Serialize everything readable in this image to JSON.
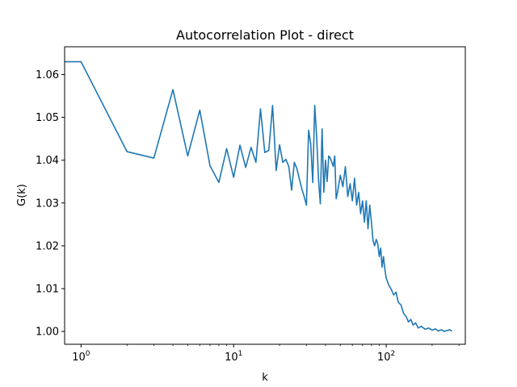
{
  "chart_data": {
    "type": "line",
    "title": "Autocorrelation Plot - direct",
    "xlabel": "k",
    "ylabel": "G(k)",
    "xscale": "log",
    "xlim": [
      0.78,
      330
    ],
    "ylim": [
      0.997,
      1.0665
    ],
    "grid": false,
    "line_color": "#1f77b4",
    "x_ticks": [
      {
        "value": 1,
        "base": "10",
        "exp": "0"
      },
      {
        "value": 10,
        "base": "10",
        "exp": "1"
      },
      {
        "value": 100,
        "base": "10",
        "exp": "2"
      }
    ],
    "y_ticks": [
      1.0,
      1.01,
      1.02,
      1.03,
      1.04,
      1.05,
      1.06
    ],
    "y_tick_labels": [
      "1.00",
      "1.01",
      "1.02",
      "1.03",
      "1.04",
      "1.05",
      "1.06"
    ],
    "series": [
      {
        "points": [
          [
            0.5,
            1.063
          ],
          [
            1,
            1.063
          ],
          [
            2,
            1.042
          ],
          [
            3,
            1.0405
          ],
          [
            4,
            1.0565
          ],
          [
            5,
            1.041
          ],
          [
            6,
            1.0517
          ],
          [
            7,
            1.0387
          ],
          [
            8,
            1.0348
          ],
          [
            9,
            1.0427
          ],
          [
            10,
            1.036
          ],
          [
            11,
            1.0435
          ],
          [
            12,
            1.0383
          ],
          [
            13,
            1.043
          ],
          [
            14,
            1.0395
          ],
          [
            15,
            1.052
          ],
          [
            16,
            1.0418
          ],
          [
            17,
            1.0423
          ],
          [
            18,
            1.0528
          ],
          [
            19,
            1.0376
          ],
          [
            20,
            1.0436
          ],
          [
            21,
            1.0395
          ],
          [
            22,
            1.0402
          ],
          [
            23,
            1.0385
          ],
          [
            24,
            1.033
          ],
          [
            25,
            1.0395
          ],
          [
            26,
            1.038
          ],
          [
            27,
            1.0355
          ],
          [
            28,
            1.0333
          ],
          [
            29,
            1.0315
          ],
          [
            30,
            1.0295
          ],
          [
            31,
            1.047
          ],
          [
            32,
            1.0438
          ],
          [
            33,
            1.0348
          ],
          [
            34,
            1.0528
          ],
          [
            35,
            1.0455
          ],
          [
            36,
            1.0355
          ],
          [
            37,
            1.0298
          ],
          [
            38,
            1.0473
          ],
          [
            39,
            1.0325
          ],
          [
            40,
            1.04
          ],
          [
            41,
            1.035
          ],
          [
            42,
            1.041
          ],
          [
            43,
            1.0405
          ],
          [
            44,
            1.0395
          ],
          [
            45,
            1.0385
          ],
          [
            46,
            1.041
          ],
          [
            47,
            1.031
          ],
          [
            48,
            1.0325
          ],
          [
            50,
            1.0365
          ],
          [
            52,
            1.0338
          ],
          [
            54,
            1.0385
          ],
          [
            56,
            1.0315
          ],
          [
            58,
            1.0345
          ],
          [
            60,
            1.0305
          ],
          [
            62,
            1.0358
          ],
          [
            64,
            1.0295
          ],
          [
            66,
            1.0325
          ],
          [
            68,
            1.0275
          ],
          [
            70,
            1.0305
          ],
          [
            72,
            1.0255
          ],
          [
            74,
            1.0305
          ],
          [
            76,
            1.024
          ],
          [
            78,
            1.0295
          ],
          [
            80,
            1.0255
          ],
          [
            82,
            1.0212
          ],
          [
            84,
            1.02
          ],
          [
            86,
            1.0215
          ],
          [
            88,
            1.0205
          ],
          [
            90,
            1.0175
          ],
          [
            92,
            1.0195
          ],
          [
            94,
            1.015
          ],
          [
            96,
            1.0175
          ],
          [
            98,
            1.0145
          ],
          [
            100,
            1.0125
          ],
          [
            104,
            1.0108
          ],
          [
            108,
            1.0098
          ],
          [
            112,
            1.0085
          ],
          [
            116,
            1.0092
          ],
          [
            120,
            1.0068
          ],
          [
            125,
            1.0062
          ],
          [
            130,
            1.0042
          ],
          [
            135,
            1.0035
          ],
          [
            140,
            1.0022
          ],
          [
            145,
            1.0028
          ],
          [
            150,
            1.0015
          ],
          [
            156,
            1.002
          ],
          [
            162,
            1.0008
          ],
          [
            170,
            1.0012
          ],
          [
            180,
            1.0005
          ],
          [
            190,
            1.0008
          ],
          [
            200,
            1.0003
          ],
          [
            210,
            1.0006
          ],
          [
            220,
            1.0001
          ],
          [
            230,
            1.0004
          ],
          [
            240,
            1.0
          ],
          [
            250,
            1.0002
          ],
          [
            260,
            1.0004
          ],
          [
            270,
            1.0001
          ]
        ]
      }
    ]
  }
}
